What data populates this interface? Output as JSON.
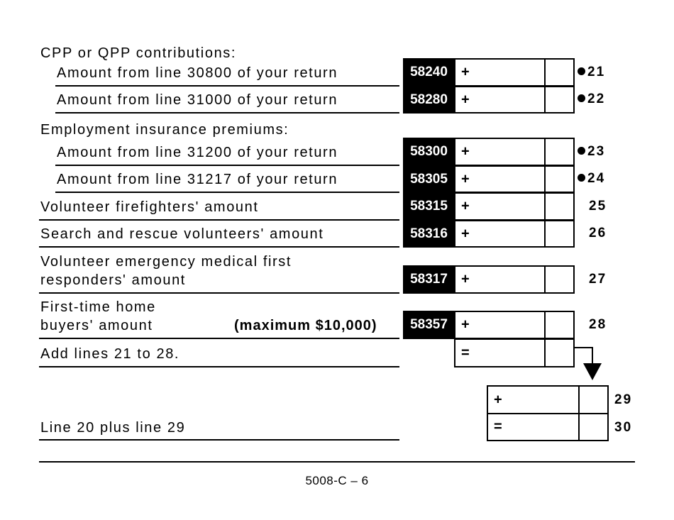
{
  "sections": {
    "cpp": "CPP or QPP contributions:",
    "ei": "Employment insurance premiums:"
  },
  "rows": [
    {
      "label": [
        "Amount from line 30800 of your return"
      ],
      "code": "58240",
      "sign": "+",
      "line": "21",
      "bullet": true
    },
    {
      "label": [
        "Amount from line 31000 of your return"
      ],
      "code": "58280",
      "sign": "+",
      "line": "22",
      "bullet": true
    },
    {
      "label": [
        "Amount from line 31200 of your return"
      ],
      "code": "58300",
      "sign": "+",
      "line": "23",
      "bullet": true
    },
    {
      "label": [
        "Amount from line 31217 of your return"
      ],
      "code": "58305",
      "sign": "+",
      "line": "24",
      "bullet": true
    },
    {
      "label": [
        "Volunteer firefighters' amount"
      ],
      "code": "58315",
      "sign": "+",
      "line": "25",
      "bullet": false
    },
    {
      "label": [
        "Search and rescue volunteers' amount"
      ],
      "code": "58316",
      "sign": "+",
      "line": "26",
      "bullet": false
    },
    {
      "label": [
        "Volunteer emergency medical first",
        "responders' amount"
      ],
      "code": "58317",
      "sign": "+",
      "line": "27",
      "bullet": false
    },
    {
      "label": [
        "First-time home",
        "buyers' amount"
      ],
      "note": "(maximum $10,000)",
      "code": "58357",
      "sign": "+",
      "line": "28",
      "bullet": false
    },
    {
      "label": [
        "Add lines 21 to 28."
      ],
      "code": "",
      "sign": "=",
      "line": "",
      "bullet": false
    }
  ],
  "totals": [
    {
      "sign": "+",
      "line": "29"
    },
    {
      "label": "Line 20 plus line 29",
      "sign": "=",
      "line": "30"
    }
  ],
  "footer": {
    "page": "5008-C – 6"
  }
}
